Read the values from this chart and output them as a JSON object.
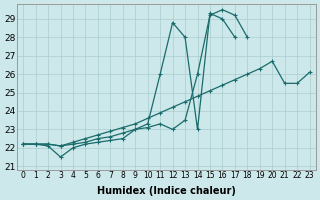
{
  "xlabel": "Humidex (Indice chaleur)",
  "background_color": "#cce8ea",
  "grid_color": "#aacccc",
  "line_color": "#1a6b6b",
  "x_ticks": [
    0,
    1,
    2,
    3,
    4,
    5,
    6,
    7,
    8,
    9,
    10,
    11,
    12,
    13,
    14,
    15,
    16,
    17,
    18,
    19,
    20,
    21,
    22,
    23
  ],
  "line1_x": [
    0,
    1,
    2,
    3,
    4,
    5,
    6,
    7,
    8,
    9,
    10,
    11,
    12,
    13,
    14,
    15,
    16,
    17,
    18,
    19,
    20,
    21,
    22,
    23
  ],
  "line1_y": [
    22.2,
    22.2,
    22.1,
    21.5,
    22.0,
    22.2,
    22.3,
    22.4,
    22.5,
    23.0,
    23.1,
    23.3,
    23.0,
    23.5,
    26.0,
    29.2,
    29.5,
    29.2,
    28.0,
    null,
    null,
    null,
    null,
    null
  ],
  "line2_x": [
    0,
    1,
    2,
    3,
    4,
    5,
    6,
    7,
    8,
    9,
    10,
    11,
    12,
    13,
    14,
    15,
    16,
    17,
    18,
    19,
    20,
    21,
    22,
    23
  ],
  "line2_y": [
    22.2,
    22.2,
    22.2,
    22.1,
    22.2,
    22.3,
    22.5,
    22.6,
    22.8,
    23.0,
    23.3,
    26.0,
    28.8,
    28.0,
    23.0,
    29.3,
    29.0,
    28.0,
    null,
    null,
    null,
    null,
    null,
    null
  ],
  "line3_x": [
    0,
    1,
    2,
    3,
    4,
    5,
    6,
    7,
    8,
    9,
    10,
    11,
    12,
    13,
    14,
    15,
    16,
    17,
    18,
    19,
    20,
    21,
    22,
    23
  ],
  "line3_y": [
    22.2,
    22.2,
    22.2,
    22.1,
    22.3,
    22.5,
    22.7,
    22.9,
    23.1,
    23.3,
    23.6,
    23.9,
    24.2,
    24.5,
    24.8,
    25.1,
    25.4,
    25.7,
    26.0,
    26.3,
    26.7,
    25.5,
    25.5,
    26.1
  ],
  "ylim": [
    20.8,
    29.8
  ],
  "yticks": [
    21,
    22,
    23,
    24,
    25,
    26,
    27,
    28,
    29
  ],
  "xlim": [
    -0.5,
    23.5
  ]
}
